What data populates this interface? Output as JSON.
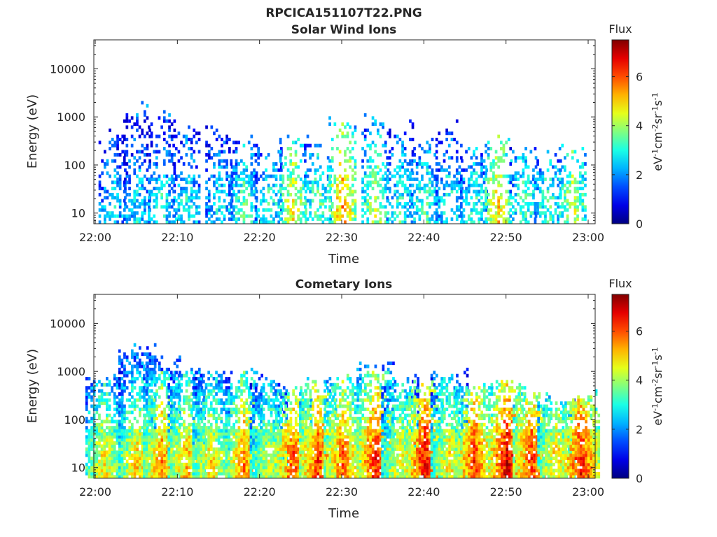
{
  "figure": {
    "title": "RPCICA151107T22.PNG"
  },
  "chart_data": [
    {
      "type": "heatmap",
      "title": "Solar Wind Ions",
      "xlabel": "Time",
      "ylabel": "Energy (eV)",
      "x_ticks": [
        "22:00",
        "22:10",
        "22:20",
        "22:30",
        "22:40",
        "22:50",
        "23:00"
      ],
      "x_range": [
        "22:00",
        "23:00"
      ],
      "y_scale": "log",
      "y_ticks": [
        10,
        100,
        1000,
        10000
      ],
      "y_tick_labels": [
        "10",
        "100",
        "1000",
        "10000"
      ],
      "y_range": [
        6,
        40000
      ],
      "grid": false,
      "colorbar": {
        "label": "Flux",
        "unit": "eV⁻¹cm⁻²sr⁻¹s⁻¹",
        "unit_base": "eV",
        "unit_parts": [
          [
            "-1",
            "cm"
          ],
          [
            "-2",
            "sr"
          ],
          [
            "-1",
            "s"
          ],
          [
            "-1",
            ""
          ]
        ],
        "range": [
          0,
          7.5
        ],
        "ticks": [
          "0",
          "2",
          "4",
          "6"
        ],
        "colormap": "jet"
      },
      "density": "sparse",
      "bursts": [
        {
          "t": "22:02",
          "emax": 400,
          "flux": 2.7
        },
        {
          "t": "22:05",
          "emax": 1500,
          "flux": 2.8
        },
        {
          "t": "22:08",
          "emax": 900,
          "flux": 3.0
        },
        {
          "t": "22:11",
          "emax": 500,
          "flux": 3.0
        },
        {
          "t": "22:15",
          "emax": 500,
          "flux": 2.8
        },
        {
          "t": "22:18",
          "emax": 300,
          "flux": 3.4
        },
        {
          "t": "22:21",
          "emax": 200,
          "flux": 3.2
        },
        {
          "t": "22:24",
          "emax": 300,
          "flux": 4.6
        },
        {
          "t": "22:27",
          "emax": 300,
          "flux": 3.6
        },
        {
          "t": "22:30",
          "emax": 700,
          "flux": 5.5
        },
        {
          "t": "22:34",
          "emax": 900,
          "flux": 4.2
        },
        {
          "t": "22:37",
          "emax": 600,
          "flux": 3.2
        },
        {
          "t": "22:40",
          "emax": 300,
          "flux": 3.4
        },
        {
          "t": "22:43",
          "emax": 600,
          "flux": 3.0
        },
        {
          "t": "22:46",
          "emax": 200,
          "flux": 3.2
        },
        {
          "t": "22:49",
          "emax": 300,
          "flux": 5.0
        },
        {
          "t": "22:52",
          "emax": 200,
          "flux": 3.4
        },
        {
          "t": "22:55",
          "emax": 150,
          "flux": 3.4
        },
        {
          "t": "22:58",
          "emax": 200,
          "flux": 4.4
        }
      ]
    },
    {
      "type": "heatmap",
      "title": "Cometary Ions",
      "xlabel": "Time",
      "ylabel": "Energy (eV)",
      "x_ticks": [
        "22:00",
        "22:10",
        "22:20",
        "22:30",
        "22:40",
        "22:50",
        "23:00"
      ],
      "x_range": [
        "22:00",
        "23:00"
      ],
      "y_scale": "log",
      "y_ticks": [
        10,
        100,
        1000,
        10000
      ],
      "y_tick_labels": [
        "10",
        "100",
        "1000",
        "10000"
      ],
      "y_range": [
        6,
        40000
      ],
      "grid": false,
      "colorbar": {
        "label": "Flux",
        "unit": "eV⁻¹cm⁻²sr⁻¹s⁻¹",
        "unit_base": "eV",
        "unit_parts": [
          [
            "-1",
            "cm"
          ],
          [
            "-2",
            "sr"
          ],
          [
            "-1",
            "s"
          ],
          [
            "-1",
            ""
          ]
        ],
        "range": [
          0,
          7.5
        ],
        "ticks": [
          "0",
          "2",
          "4",
          "6"
        ],
        "colormap": "jet"
      },
      "density": "dense",
      "bursts": [
        {
          "t": "22:01",
          "emax": 600,
          "flux": 4.8
        },
        {
          "t": "22:05",
          "emax": 3000,
          "flux": 5.0
        },
        {
          "t": "22:08",
          "emax": 1500,
          "flux": 5.6
        },
        {
          "t": "22:11",
          "emax": 1000,
          "flux": 5.2
        },
        {
          "t": "22:14",
          "emax": 900,
          "flux": 4.8
        },
        {
          "t": "22:18",
          "emax": 800,
          "flux": 5.6
        },
        {
          "t": "22:21",
          "emax": 500,
          "flux": 4.4
        },
        {
          "t": "22:24",
          "emax": 400,
          "flux": 6.0
        },
        {
          "t": "22:27",
          "emax": 500,
          "flux": 6.2
        },
        {
          "t": "22:30",
          "emax": 700,
          "flux": 5.8
        },
        {
          "t": "22:34",
          "emax": 1200,
          "flux": 6.4
        },
        {
          "t": "22:37",
          "emax": 600,
          "flux": 4.6
        },
        {
          "t": "22:40",
          "emax": 500,
          "flux": 6.6
        },
        {
          "t": "22:43",
          "emax": 800,
          "flux": 4.8
        },
        {
          "t": "22:46",
          "emax": 400,
          "flux": 6.2
        },
        {
          "t": "22:50",
          "emax": 600,
          "flux": 6.8
        },
        {
          "t": "22:53",
          "emax": 300,
          "flux": 6.2
        },
        {
          "t": "22:56",
          "emax": 200,
          "flux": 5.0
        },
        {
          "t": "22:59",
          "emax": 300,
          "flux": 6.4
        }
      ]
    }
  ]
}
